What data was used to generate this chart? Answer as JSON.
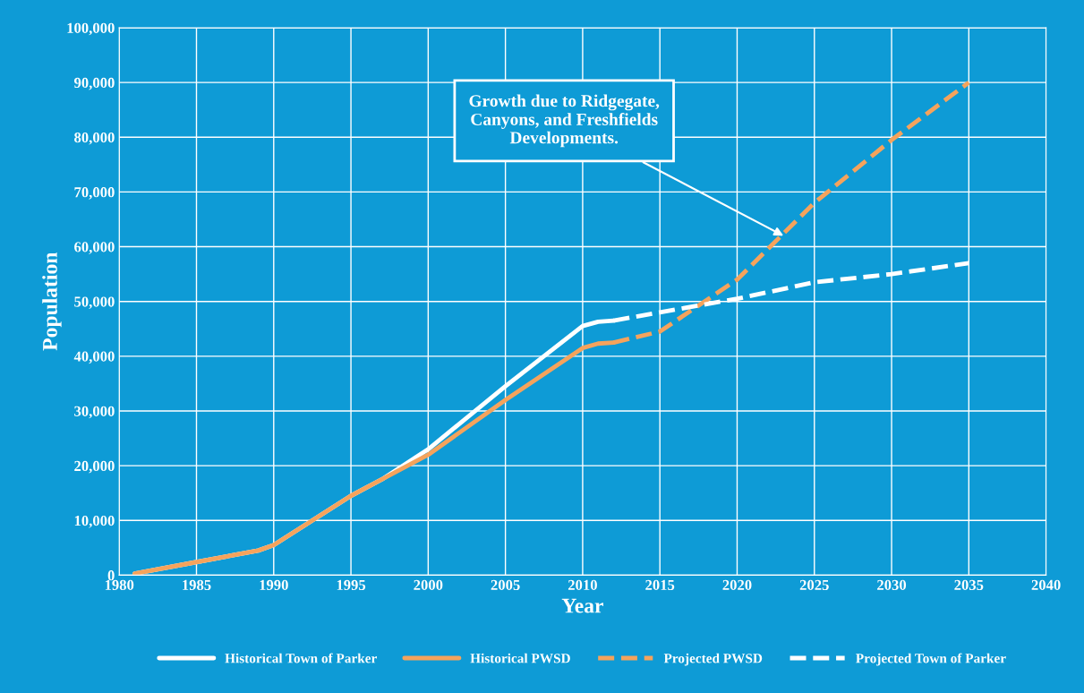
{
  "chart_data": {
    "type": "line",
    "xlabel": "Year",
    "ylabel": "Population",
    "xlim": [
      1980,
      2040
    ],
    "xticks": [
      1980,
      1985,
      1990,
      1995,
      2000,
      2005,
      2010,
      2015,
      2020,
      2025,
      2030,
      2035,
      2040
    ],
    "ylim": [
      0,
      100000
    ],
    "yticks": [
      {
        "value": 0,
        "label": "0"
      },
      {
        "value": 10000,
        "label": "10,000"
      },
      {
        "value": 20000,
        "label": "20,000"
      },
      {
        "value": 30000,
        "label": "30,000"
      },
      {
        "value": 40000,
        "label": "40,000"
      },
      {
        "value": 50000,
        "label": "50,000"
      },
      {
        "value": 60000,
        "label": "60,000"
      },
      {
        "value": 70000,
        "label": "70,000"
      },
      {
        "value": 80000,
        "label": "80,000"
      },
      {
        "value": 90000,
        "label": "90,000"
      },
      {
        "value": 100000,
        "label": "100,000"
      }
    ],
    "grid": true,
    "legend": "bottom",
    "marker": "none",
    "series": [
      {
        "name": "Historical Town of Parker",
        "color": "#ffffff",
        "line_style": "solid",
        "x": [
          1981,
          1985,
          1989,
          1990,
          1995,
          1997,
          2000,
          2005,
          2010,
          2011,
          2012
        ],
        "values": [
          300,
          2400,
          4500,
          5500,
          14500,
          17500,
          23000,
          34500,
          45500,
          46300,
          46500
        ]
      },
      {
        "name": "Historical PWSD",
        "color": "#f5a35c",
        "line_style": "solid",
        "x": [
          1981,
          1985,
          1989,
          1990,
          1995,
          1997,
          2000,
          2005,
          2010,
          2011,
          2012
        ],
        "values": [
          300,
          2400,
          4500,
          5500,
          14500,
          17500,
          22000,
          32000,
          41500,
          42300,
          42500
        ]
      },
      {
        "name": "Projected PWSD",
        "color": "#f5a35c",
        "line_style": "dashed",
        "x": [
          2012,
          2015,
          2020,
          2025,
          2030,
          2035
        ],
        "values": [
          42500,
          44500,
          54000,
          68000,
          79500,
          90000
        ]
      },
      {
        "name": "Projected Town of Parker",
        "color": "#ffffff",
        "line_style": "dashed",
        "x": [
          2012,
          2015,
          2020,
          2025,
          2030,
          2035
        ],
        "values": [
          46500,
          48000,
          50500,
          53500,
          55000,
          57000
        ]
      }
    ],
    "annotations": [
      {
        "text": "Growth due to Ridgegate,\nCanyons, and Freshfields\nDevelopments.",
        "x": 2023,
        "y": 62000
      }
    ]
  }
}
